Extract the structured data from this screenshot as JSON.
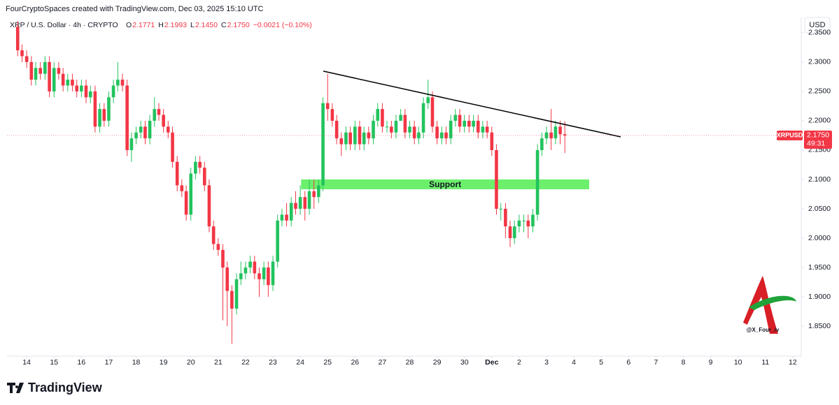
{
  "header": {
    "credit": "FourCryptoSpaces created with TradingView.com, Dec 03, 2025 15:10 UTC",
    "symbol": "XRP / U.S. Dollar · 4h · CRYPTO",
    "ohlc": [
      {
        "key": "O",
        "value": "2.1771"
      },
      {
        "key": "H",
        "value": "2.1993"
      },
      {
        "key": "L",
        "value": "2.1450"
      },
      {
        "key": "C",
        "value": "2.1750"
      }
    ],
    "change": "−0.0021 (−0.10%)",
    "currency": "USD"
  },
  "chart_data": {
    "type": "candlestick",
    "up_color": "#22c35e",
    "down_color": "#f23645",
    "x": [
      -0.33,
      -0.17,
      0,
      0.17,
      0.33,
      0.5,
      0.67,
      0.83,
      1,
      1.17,
      1.33,
      1.5,
      1.67,
      1.83,
      2,
      2.17,
      2.33,
      2.5,
      2.67,
      2.83,
      3,
      3.17,
      3.33,
      3.5,
      3.67,
      3.83,
      4,
      4.17,
      4.33,
      4.5,
      4.67,
      4.83,
      5,
      5.17,
      5.33,
      5.5,
      5.67,
      5.83,
      6,
      6.17,
      6.33,
      6.5,
      6.67,
      6.83,
      7,
      7.17,
      7.33,
      7.5,
      7.67,
      7.83,
      8,
      8.17,
      8.33,
      8.5,
      8.67,
      8.83,
      9,
      9.17,
      9.33,
      9.5,
      9.67,
      9.83,
      10,
      10.17,
      10.33,
      10.5,
      10.67,
      10.83,
      11,
      11.17,
      11.33,
      11.5,
      11.67,
      11.83,
      12,
      12.17,
      12.33,
      12.5,
      12.67,
      12.83,
      13,
      13.17,
      13.33,
      13.5,
      13.67,
      13.83,
      14,
      14.17,
      14.33,
      14.5,
      14.67,
      14.83,
      15,
      15.17,
      15.33,
      15.5,
      15.67,
      15.83,
      16,
      16.17,
      16.33,
      16.5,
      16.67,
      16.83,
      17,
      17.17,
      17.33,
      17.5,
      17.67,
      17.83,
      18,
      18.17,
      18.33,
      18.5,
      18.67,
      18.83,
      19,
      19.17,
      19.33,
      19.5,
      19.67
    ],
    "open": [
      2.36,
      2.32,
      2.31,
      2.3,
      2.27,
      2.29,
      2.28,
      2.3,
      2.25,
      2.29,
      2.28,
      2.26,
      2.27,
      2.26,
      2.25,
      2.26,
      2.24,
      2.25,
      2.19,
      2.22,
      2.2,
      2.24,
      2.26,
      2.27,
      2.26,
      2.15,
      2.17,
      2.18,
      2.19,
      2.17,
      2.2,
      2.22,
      2.21,
      2.19,
      2.18,
      2.13,
      2.09,
      2.08,
      2.04,
      2.11,
      2.13,
      2.12,
      2.09,
      2.02,
      1.99,
      1.98,
      1.95,
      1.91,
      1.88,
      1.93,
      1.94,
      1.95,
      1.96,
      1.94,
      1.93,
      1.95,
      1.92,
      1.96,
      2.03,
      2.04,
      2.03,
      2.06,
      2.05,
      2.07,
      2.05,
      2.08,
      2.07,
      2.09,
      2.23,
      2.22,
      2.2,
      2.17,
      2.16,
      2.18,
      2.16,
      2.19,
      2.16,
      2.18,
      2.17,
      2.2,
      2.22,
      2.19,
      2.19,
      2.18,
      2.2,
      2.21,
      2.18,
      2.19,
      2.17,
      2.18,
      2.23,
      2.24,
      2.19,
      2.17,
      2.18,
      2.17,
      2.2,
      2.21,
      2.19,
      2.2,
      2.19,
      2.2,
      2.18,
      2.19,
      2.18,
      2.15,
      2.05,
      2.05,
      2.02,
      2.0,
      2.02,
      2.03,
      2.03,
      2.02,
      2.04,
      2.15,
      2.17,
      2.18,
      2.17,
      2.19,
      2.1771
    ],
    "high": [
      2.37,
      2.33,
      2.32,
      2.31,
      2.3,
      2.3,
      2.31,
      2.31,
      2.3,
      2.3,
      2.29,
      2.28,
      2.28,
      2.27,
      2.27,
      2.27,
      2.26,
      2.26,
      2.23,
      2.23,
      2.25,
      2.27,
      2.3,
      2.28,
      2.27,
      2.18,
      2.19,
      2.2,
      2.2,
      2.21,
      2.24,
      2.23,
      2.22,
      2.2,
      2.19,
      2.14,
      2.1,
      2.09,
      2.12,
      2.14,
      2.14,
      2.13,
      2.1,
      2.03,
      2.0,
      1.99,
      1.96,
      1.92,
      1.94,
      1.96,
      1.96,
      1.97,
      1.97,
      1.95,
      1.96,
      1.96,
      1.97,
      2.04,
      2.05,
      2.06,
      2.07,
      2.08,
      2.09,
      2.08,
      2.1,
      2.1,
      2.1,
      2.24,
      2.28,
      2.23,
      2.21,
      2.18,
      2.19,
      2.19,
      2.2,
      2.2,
      2.19,
      2.19,
      2.21,
      2.23,
      2.23,
      2.2,
      2.2,
      2.21,
      2.22,
      2.22,
      2.2,
      2.2,
      2.19,
      2.24,
      2.27,
      2.25,
      2.2,
      2.19,
      2.19,
      2.21,
      2.22,
      2.22,
      2.21,
      2.21,
      2.21,
      2.21,
      2.2,
      2.2,
      2.19,
      2.16,
      2.06,
      2.06,
      2.03,
      2.03,
      2.04,
      2.04,
      2.04,
      2.05,
      2.16,
      2.18,
      2.19,
      2.22,
      2.2,
      2.2,
      2.1993
    ],
    "low": [
      2.31,
      2.3,
      2.29,
      2.26,
      2.26,
      2.27,
      2.27,
      2.24,
      2.24,
      2.27,
      2.25,
      2.25,
      2.25,
      2.24,
      2.24,
      2.23,
      2.23,
      2.18,
      2.18,
      2.19,
      2.19,
      2.23,
      2.25,
      2.25,
      2.14,
      2.13,
      2.16,
      2.17,
      2.16,
      2.16,
      2.19,
      2.2,
      2.18,
      2.17,
      2.12,
      2.08,
      2.07,
      2.03,
      2.03,
      2.1,
      2.11,
      2.08,
      2.01,
      1.98,
      1.97,
      1.86,
      1.85,
      1.82,
      1.87,
      1.92,
      1.93,
      1.94,
      1.93,
      1.9,
      1.92,
      1.9,
      1.91,
      1.95,
      2.02,
      2.02,
      2.02,
      2.04,
      2.04,
      2.03,
      2.04,
      2.05,
      2.06,
      2.08,
      2.2,
      2.19,
      2.16,
      2.14,
      2.15,
      2.15,
      2.15,
      2.15,
      2.15,
      2.16,
      2.16,
      2.19,
      2.18,
      2.18,
      2.17,
      2.17,
      2.2,
      2.17,
      2.17,
      2.16,
      2.16,
      2.17,
      2.22,
      2.18,
      2.16,
      2.16,
      2.16,
      2.16,
      2.19,
      2.18,
      2.18,
      2.18,
      2.18,
      2.17,
      2.17,
      2.17,
      2.14,
      2.04,
      2.03,
      2.0,
      1.985,
      1.99,
      2.01,
      2.01,
      2.0,
      2.01,
      2.03,
      2.14,
      2.16,
      2.15,
      2.16,
      2.16,
      2.145
    ],
    "close": [
      2.32,
      2.31,
      2.3,
      2.27,
      2.29,
      2.28,
      2.3,
      2.25,
      2.29,
      2.28,
      2.26,
      2.27,
      2.26,
      2.25,
      2.26,
      2.24,
      2.25,
      2.19,
      2.22,
      2.2,
      2.24,
      2.26,
      2.27,
      2.26,
      2.15,
      2.17,
      2.18,
      2.19,
      2.17,
      2.2,
      2.22,
      2.21,
      2.19,
      2.18,
      2.13,
      2.09,
      2.08,
      2.04,
      2.11,
      2.13,
      2.12,
      2.09,
      2.02,
      1.99,
      1.98,
      1.95,
      1.91,
      1.88,
      1.93,
      1.94,
      1.95,
      1.96,
      1.94,
      1.93,
      1.95,
      1.92,
      1.96,
      2.03,
      2.04,
      2.03,
      2.06,
      2.05,
      2.07,
      2.05,
      2.08,
      2.07,
      2.09,
      2.23,
      2.22,
      2.2,
      2.17,
      2.16,
      2.18,
      2.16,
      2.19,
      2.16,
      2.18,
      2.17,
      2.2,
      2.22,
      2.19,
      2.19,
      2.18,
      2.2,
      2.21,
      2.18,
      2.19,
      2.17,
      2.18,
      2.23,
      2.24,
      2.19,
      2.17,
      2.18,
      2.17,
      2.2,
      2.21,
      2.19,
      2.2,
      2.19,
      2.2,
      2.18,
      2.19,
      2.18,
      2.15,
      2.05,
      2.05,
      2.02,
      2.0,
      2.02,
      2.03,
      2.03,
      2.02,
      2.04,
      2.15,
      2.17,
      2.18,
      2.17,
      2.19,
      2.1771,
      2.175
    ],
    "xlim": [
      -0.72,
      28.31
    ],
    "xticks": [
      {
        "value": 0,
        "label": "14"
      },
      {
        "value": 1,
        "label": "15"
      },
      {
        "value": 2,
        "label": "16"
      },
      {
        "value": 3,
        "label": "17"
      },
      {
        "value": 4,
        "label": "18"
      },
      {
        "value": 5,
        "label": "19"
      },
      {
        "value": 6,
        "label": "20"
      },
      {
        "value": 7,
        "label": "21"
      },
      {
        "value": 8,
        "label": "22"
      },
      {
        "value": 9,
        "label": "23"
      },
      {
        "value": 10,
        "label": "24"
      },
      {
        "value": 11,
        "label": "25"
      },
      {
        "value": 12,
        "label": "26"
      },
      {
        "value": 13,
        "label": "27"
      },
      {
        "value": 14,
        "label": "28"
      },
      {
        "value": 15,
        "label": "29"
      },
      {
        "value": 16,
        "label": "30"
      },
      {
        "value": 17,
        "label": "Dec"
      },
      {
        "value": 18,
        "label": "2"
      },
      {
        "value": 19,
        "label": "3"
      },
      {
        "value": 20,
        "label": "4"
      },
      {
        "value": 21,
        "label": "5"
      },
      {
        "value": 22,
        "label": "6"
      },
      {
        "value": 23,
        "label": "7"
      },
      {
        "value": 24,
        "label": "8"
      },
      {
        "value": 25,
        "label": "9"
      },
      {
        "value": 26,
        "label": "10"
      },
      {
        "value": 27,
        "label": "11"
      },
      {
        "value": 28,
        "label": "12"
      }
    ],
    "ylim": [
      1.799,
      2.376
    ],
    "yticks": [
      {
        "value": 1.85,
        "label": "1.8500"
      },
      {
        "value": 1.9,
        "label": "1.9000"
      },
      {
        "value": 1.95,
        "label": "1.9500"
      },
      {
        "value": 2.0,
        "label": "2.0000"
      },
      {
        "value": 2.05,
        "label": "2.0500"
      },
      {
        "value": 2.1,
        "label": "2.1000"
      },
      {
        "value": 2.15,
        "label": "2.1500"
      },
      {
        "value": 2.2,
        "label": "2.2000"
      },
      {
        "value": 2.25,
        "label": "2.2500"
      },
      {
        "value": 2.3,
        "label": "2.3000"
      },
      {
        "value": 2.35,
        "label": "2.3500"
      }
    ],
    "trendline": {
      "x": [
        10.84,
        21.71
      ],
      "y": [
        2.2845,
        2.1726
      ],
      "color": "#000000"
    },
    "zone": {
      "x": [
        10.03,
        20.56
      ],
      "y": [
        2.0833,
        2.1
      ],
      "label": "Support",
      "color": "#6cf06c"
    },
    "price_tag": {
      "symbol": "XRPUSD",
      "price": "2.1750",
      "countdown": "49:31"
    }
  },
  "watermark": "@X_Four_iv",
  "brand": "TradingView"
}
